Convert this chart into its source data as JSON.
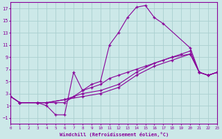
{
  "xlabel": "Windchill (Refroidissement éolien,°C)",
  "background_color": "#cce8e8",
  "grid_color": "#aacfcf",
  "line_color": "#880099",
  "xlim": [
    0,
    23
  ],
  "ylim": [
    -2,
    18
  ],
  "xticks": [
    0,
    1,
    2,
    3,
    4,
    5,
    6,
    7,
    8,
    9,
    10,
    11,
    12,
    13,
    14,
    15,
    16,
    17,
    18,
    19,
    20,
    21,
    22,
    23
  ],
  "yticks": [
    -1,
    1,
    3,
    5,
    7,
    9,
    11,
    13,
    15,
    17
  ],
  "line1_x": [
    0,
    1,
    3,
    4,
    5,
    6,
    7,
    8,
    9,
    10,
    11,
    12,
    13,
    14,
    15,
    16,
    17,
    20,
    21,
    22,
    23
  ],
  "line1_y": [
    2.5,
    1.5,
    1.5,
    1.0,
    -0.5,
    -0.5,
    6.5,
    3.5,
    4.5,
    5.0,
    11.0,
    13.0,
    15.5,
    17.2,
    17.5,
    15.5,
    14.5,
    10.5,
    6.5,
    6.0,
    6.5
  ],
  "line2_x": [
    0,
    1,
    3,
    4,
    5,
    6,
    7,
    8,
    9,
    10,
    11,
    12,
    13,
    14,
    15,
    17,
    18,
    19,
    20,
    21,
    22,
    23
  ],
  "line2_y": [
    2.5,
    1.5,
    1.5,
    1.5,
    1.5,
    1.5,
    2.5,
    3.5,
    4.0,
    4.5,
    5.5,
    6.0,
    6.5,
    7.0,
    7.5,
    8.5,
    9.0,
    9.5,
    10.0,
    6.5,
    6.0,
    6.5
  ],
  "line3_x": [
    0,
    1,
    3,
    4,
    6,
    8,
    10,
    12,
    14,
    16,
    18,
    20,
    21,
    22,
    23
  ],
  "line3_y": [
    2.5,
    1.5,
    1.5,
    1.5,
    2.0,
    3.0,
    3.5,
    4.5,
    6.5,
    8.0,
    9.0,
    9.5,
    6.5,
    6.0,
    6.5
  ],
  "line4_x": [
    0,
    1,
    3,
    4,
    6,
    8,
    10,
    12,
    14,
    16,
    18,
    20,
    21,
    22,
    23
  ],
  "line4_y": [
    2.5,
    1.5,
    1.5,
    1.5,
    2.0,
    2.5,
    3.0,
    4.0,
    6.0,
    7.5,
    8.5,
    9.5,
    6.5,
    6.0,
    6.5
  ]
}
